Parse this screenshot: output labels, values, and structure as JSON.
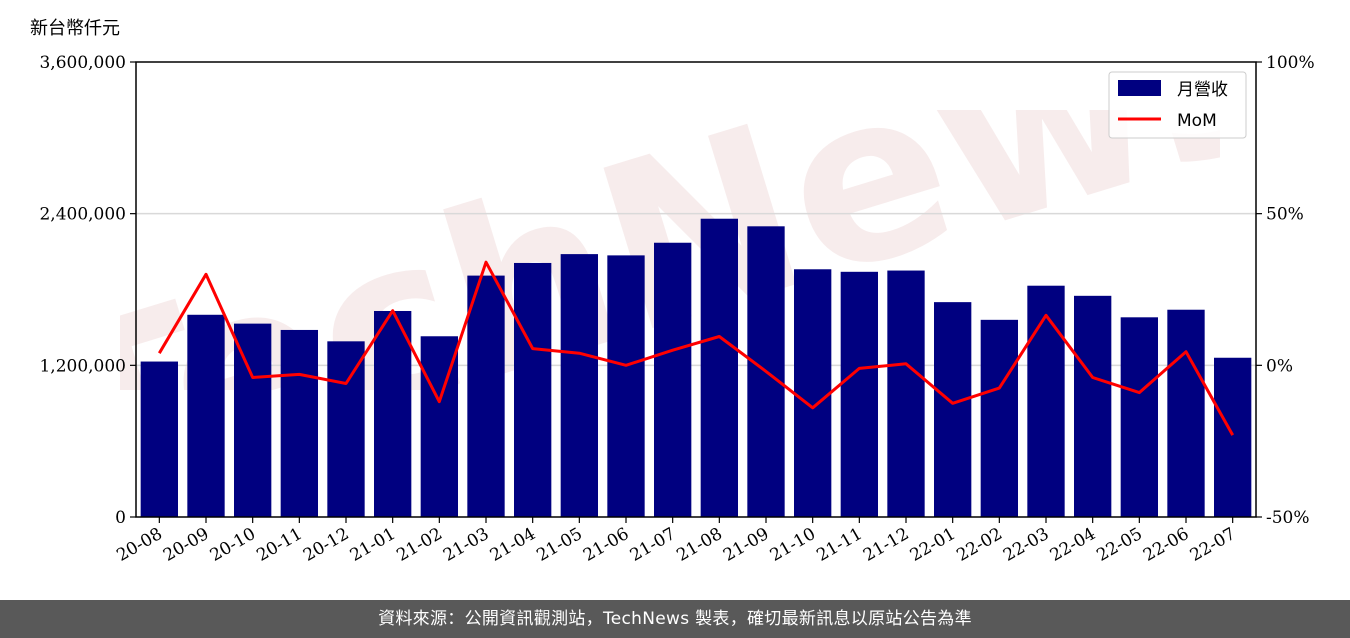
{
  "footer": {
    "text": "資料來源：公開資訊觀測站，TechNews 製表，確切最新訊息以原站公告為準"
  },
  "watermark": {
    "text": "TechNews"
  },
  "chart_data": {
    "type": "bar",
    "ylabel": "新台幣仟元",
    "categories": [
      "20-08",
      "20-09",
      "20-10",
      "20-11",
      "20-12",
      "21-01",
      "21-02",
      "21-03",
      "21-04",
      "21-05",
      "21-06",
      "21-07",
      "21-08",
      "21-09",
      "21-10",
      "21-11",
      "21-12",
      "22-01",
      "22-02",
      "22-03",
      "22-04",
      "22-05",
      "22-06",
      "22-07"
    ],
    "ylim": [
      0,
      3600000
    ],
    "yticks": [
      "0",
      "1,200,000",
      "2,400,000",
      "3,600,000"
    ],
    "ytick_values": [
      0,
      1200000,
      2400000,
      3600000
    ],
    "y2lim": [
      -50,
      100
    ],
    "y2ticks": [
      "-50%",
      "0%",
      "50%",
      "100%"
    ],
    "y2tick_values": [
      -50,
      0,
      50,
      100
    ],
    "grid": "horizontal",
    "legend_position": "top-right",
    "colors": {
      "bar": "#000080",
      "line": "#ff0000"
    },
    "series": [
      {
        "name": "月營收",
        "type": "bar",
        "axis": "left",
        "values": [
          1230000,
          1600000,
          1530000,
          1480000,
          1390000,
          1630000,
          1430000,
          1910000,
          2010000,
          2080000,
          2070000,
          2170000,
          2360000,
          2300000,
          1960000,
          1940000,
          1950000,
          1700000,
          1560000,
          1830000,
          1750000,
          1580000,
          1640000,
          1260000
        ]
      },
      {
        "name": "MoM",
        "type": "line",
        "axis": "right",
        "values": [
          4,
          30,
          -4,
          -3,
          -6,
          18,
          -12,
          34,
          5.5,
          4,
          0,
          5,
          9.5,
          -2,
          -14,
          -1,
          0.5,
          -12.5,
          -7.5,
          16.5,
          -4,
          -9,
          4.5,
          -23
        ]
      }
    ]
  }
}
